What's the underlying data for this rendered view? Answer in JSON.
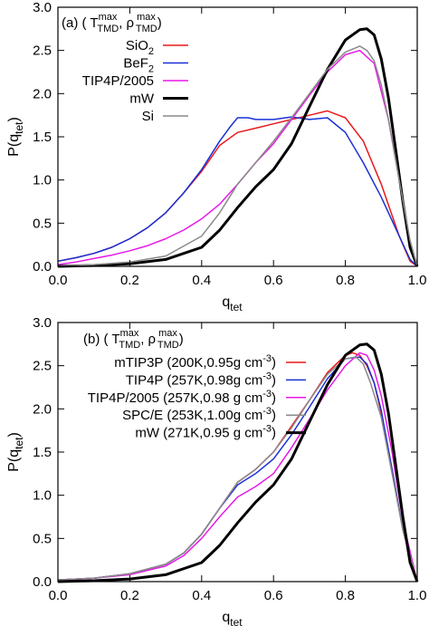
{
  "chart_data": [
    {
      "type": "line",
      "panel_label": "(a)",
      "legend_title": {
        "prefix": "(",
        "t_base": "T",
        "t_sup": "max",
        "t_sub": "TMD",
        "sep": ",",
        "r_base": "ρ",
        "r_sup": "max",
        "r_sub": "TMD",
        "suffix": ")"
      },
      "xlabel": {
        "base": "q",
        "sub": "tet"
      },
      "ylabel": {
        "base": "P(q",
        "sub": "tet",
        "tail": ")"
      },
      "xlim": [
        0,
        1
      ],
      "ylim": [
        0,
        3
      ],
      "xticks": [
        "0.0",
        "0.2",
        "0.4",
        "0.6",
        "0.8",
        "1.0"
      ],
      "yticks": [
        "0.0",
        "0.5",
        "1.0",
        "1.5",
        "2.0",
        "2.5",
        "3.0"
      ],
      "grid": false,
      "legend_position": "top-left",
      "series": [
        {
          "name": {
            "base": "SiO",
            "sub": "2",
            "tail": ""
          },
          "color": "#e8191d",
          "width": 1.5,
          "x": [
            0,
            0.05,
            0.1,
            0.15,
            0.2,
            0.25,
            0.3,
            0.35,
            0.4,
            0.45,
            0.5,
            0.55,
            0.6,
            0.65,
            0.7,
            0.75,
            0.8,
            0.85,
            0.9,
            0.95,
            0.98,
            1.0
          ],
          "y": [
            0.06,
            0.1,
            0.15,
            0.22,
            0.32,
            0.45,
            0.62,
            0.85,
            1.1,
            1.4,
            1.55,
            1.6,
            1.65,
            1.7,
            1.75,
            1.8,
            1.72,
            1.45,
            0.95,
            0.35,
            0.06,
            0.0
          ]
        },
        {
          "name": {
            "base": "BeF",
            "sub": "2",
            "tail": ""
          },
          "color": "#1931d6",
          "width": 1.5,
          "x": [
            0,
            0.05,
            0.1,
            0.15,
            0.2,
            0.25,
            0.3,
            0.35,
            0.4,
            0.45,
            0.48,
            0.5,
            0.53,
            0.55,
            0.6,
            0.65,
            0.7,
            0.75,
            0.8,
            0.85,
            0.9,
            0.95,
            0.98,
            1.0
          ],
          "y": [
            0.06,
            0.1,
            0.15,
            0.22,
            0.32,
            0.45,
            0.62,
            0.85,
            1.12,
            1.45,
            1.62,
            1.72,
            1.72,
            1.7,
            1.7,
            1.73,
            1.7,
            1.72,
            1.55,
            1.2,
            0.8,
            0.35,
            0.08,
            0.0
          ]
        },
        {
          "name": {
            "base": "TIP4P/2005",
            "sub": "",
            "tail": ""
          },
          "color": "#e619e6",
          "width": 1.5,
          "x": [
            0,
            0.05,
            0.1,
            0.15,
            0.2,
            0.25,
            0.3,
            0.35,
            0.4,
            0.45,
            0.5,
            0.55,
            0.6,
            0.65,
            0.7,
            0.75,
            0.8,
            0.84,
            0.88,
            0.92,
            0.95,
            0.98,
            1.0
          ],
          "y": [
            0.02,
            0.05,
            0.09,
            0.13,
            0.18,
            0.24,
            0.32,
            0.42,
            0.55,
            0.72,
            0.95,
            1.2,
            1.42,
            1.7,
            1.98,
            2.25,
            2.45,
            2.5,
            2.35,
            1.7,
            1.0,
            0.25,
            0.0
          ]
        },
        {
          "name": {
            "base": "mW",
            "sub": "",
            "tail": ""
          },
          "color": "#000000",
          "width": 3,
          "x": [
            0,
            0.1,
            0.2,
            0.3,
            0.4,
            0.45,
            0.5,
            0.55,
            0.6,
            0.65,
            0.7,
            0.75,
            0.8,
            0.84,
            0.86,
            0.88,
            0.9,
            0.92,
            0.94,
            0.96,
            0.98,
            1.0
          ],
          "y": [
            0.0,
            0.01,
            0.03,
            0.08,
            0.22,
            0.42,
            0.68,
            0.92,
            1.12,
            1.42,
            1.85,
            2.28,
            2.62,
            2.74,
            2.75,
            2.68,
            2.4,
            1.95,
            1.35,
            0.75,
            0.22,
            0.0
          ]
        },
        {
          "name": {
            "base": "Si",
            "sub": "",
            "tail": ""
          },
          "color": "#8a8a8a",
          "width": 1.5,
          "x": [
            0,
            0.1,
            0.2,
            0.3,
            0.4,
            0.45,
            0.5,
            0.55,
            0.6,
            0.65,
            0.7,
            0.75,
            0.8,
            0.84,
            0.86,
            0.88,
            0.9,
            0.92,
            0.95,
            0.98,
            1.0
          ],
          "y": [
            0.0,
            0.02,
            0.05,
            0.12,
            0.35,
            0.62,
            0.95,
            1.2,
            1.45,
            1.72,
            2.0,
            2.28,
            2.48,
            2.55,
            2.5,
            2.38,
            2.1,
            1.7,
            1.0,
            0.3,
            0.0
          ]
        }
      ]
    },
    {
      "type": "line",
      "panel_label": "(b)",
      "legend_title": {
        "prefix": "(",
        "t_base": "T",
        "t_sup": "max",
        "t_sub": "TMD",
        "sep": ",",
        "r_base": "ρ",
        "r_sup": "max",
        "r_sub": "TMD",
        "suffix": ")"
      },
      "xlabel": {
        "base": "q",
        "sub": "tet"
      },
      "ylabel": {
        "base": "P(q",
        "sub": "tet",
        "tail": ")"
      },
      "xlim": [
        0,
        1
      ],
      "ylim": [
        0,
        3
      ],
      "xticks": [
        "0.0",
        "0.2",
        "0.4",
        "0.6",
        "0.8",
        "1.0"
      ],
      "yticks": [
        "0.0",
        "0.5",
        "1.0",
        "1.5",
        "2.0",
        "2.5",
        "3.0"
      ],
      "grid": false,
      "legend_position": "top-left",
      "series": [
        {
          "name": {
            "base": "mTIP3P (200K,0.95g cm",
            "sup": "-3",
            "tail": ")"
          },
          "color": "#e8191d",
          "width": 1.5,
          "x": [
            0,
            0.1,
            0.2,
            0.3,
            0.35,
            0.4,
            0.45,
            0.5,
            0.55,
            0.6,
            0.65,
            0.7,
            0.75,
            0.8,
            0.82,
            0.84,
            0.86,
            0.88,
            0.9,
            0.93,
            0.96,
            1.0
          ],
          "y": [
            0.02,
            0.04,
            0.09,
            0.2,
            0.33,
            0.55,
            0.85,
            1.15,
            1.3,
            1.5,
            1.8,
            2.1,
            2.42,
            2.62,
            2.65,
            2.62,
            2.5,
            2.3,
            1.95,
            1.3,
            0.6,
            0.0
          ]
        },
        {
          "name": {
            "base": "TIP4P (257K,0.98g cm",
            "sup": "-3",
            "tail": ")"
          },
          "color": "#1931d6",
          "width": 1.5,
          "x": [
            0,
            0.1,
            0.2,
            0.3,
            0.35,
            0.4,
            0.45,
            0.5,
            0.55,
            0.6,
            0.65,
            0.7,
            0.75,
            0.8,
            0.84,
            0.86,
            0.88,
            0.9,
            0.93,
            0.96,
            1.0
          ],
          "y": [
            0.02,
            0.04,
            0.09,
            0.2,
            0.33,
            0.55,
            0.85,
            1.12,
            1.25,
            1.42,
            1.7,
            2.02,
            2.35,
            2.58,
            2.6,
            2.52,
            2.3,
            1.98,
            1.3,
            0.6,
            0.0
          ]
        },
        {
          "name": {
            "base": "TIP4P/2005 (257K,0.98 g cm",
            "sup": "-3",
            "tail": ")"
          },
          "color": "#e619e6",
          "width": 1.5,
          "x": [
            0,
            0.1,
            0.2,
            0.3,
            0.35,
            0.4,
            0.45,
            0.5,
            0.55,
            0.6,
            0.65,
            0.7,
            0.75,
            0.8,
            0.84,
            0.86,
            0.88,
            0.9,
            0.93,
            0.96,
            1.0
          ],
          "y": [
            0.02,
            0.04,
            0.08,
            0.18,
            0.3,
            0.5,
            0.75,
            0.98,
            1.1,
            1.25,
            1.55,
            1.88,
            2.22,
            2.5,
            2.65,
            2.62,
            2.45,
            2.15,
            1.5,
            0.7,
            0.0
          ]
        },
        {
          "name": {
            "base": "SPC/E (253K,1.00g cm",
            "sup": "-3",
            "tail": ")"
          },
          "color": "#8a8a8a",
          "width": 1.5,
          "x": [
            0,
            0.1,
            0.2,
            0.3,
            0.35,
            0.4,
            0.45,
            0.5,
            0.55,
            0.6,
            0.65,
            0.7,
            0.75,
            0.8,
            0.83,
            0.85,
            0.87,
            0.9,
            0.93,
            0.96,
            1.0
          ],
          "y": [
            0.02,
            0.04,
            0.09,
            0.2,
            0.33,
            0.55,
            0.85,
            1.15,
            1.3,
            1.5,
            1.78,
            2.1,
            2.4,
            2.58,
            2.6,
            2.52,
            2.3,
            1.9,
            1.25,
            0.6,
            0.0
          ]
        },
        {
          "name": {
            "base": "mW (271K,0.95 g cm",
            "sup": "-3",
            "tail": ")"
          },
          "color": "#000000",
          "width": 3,
          "x": [
            0,
            0.1,
            0.2,
            0.3,
            0.4,
            0.45,
            0.5,
            0.55,
            0.6,
            0.65,
            0.7,
            0.75,
            0.8,
            0.84,
            0.86,
            0.88,
            0.9,
            0.92,
            0.94,
            0.96,
            0.98,
            1.0
          ],
          "y": [
            0.0,
            0.01,
            0.03,
            0.08,
            0.22,
            0.42,
            0.68,
            0.92,
            1.12,
            1.42,
            1.85,
            2.28,
            2.62,
            2.74,
            2.75,
            2.68,
            2.4,
            1.95,
            1.35,
            0.75,
            0.22,
            0.0
          ]
        }
      ]
    }
  ]
}
